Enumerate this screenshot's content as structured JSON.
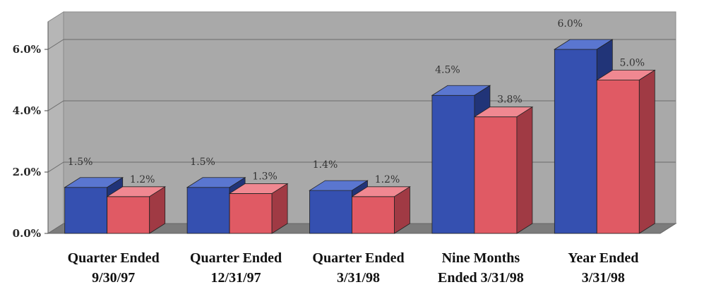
{
  "chart_data": {
    "type": "bar",
    "title": "",
    "xlabel": "",
    "ylabel": "",
    "ylim": [
      0,
      6.9
    ],
    "y_ticks": [
      "0.0%",
      "2.0%",
      "4.0%",
      "6.0%"
    ],
    "y_tick_values": [
      0,
      2,
      4,
      6
    ],
    "grid": true,
    "legend": "none",
    "categories": [
      [
        "Quarter Ended",
        "9/30/97"
      ],
      [
        "Quarter Ended",
        "12/31/97"
      ],
      [
        "Quarter Ended",
        "3/31/98"
      ],
      [
        "Nine Months",
        "Ended 3/31/98"
      ],
      [
        "Year  Ended",
        "3/31/98"
      ]
    ],
    "series": [
      {
        "values": [
          1.5,
          1.5,
          1.4,
          4.5,
          6.0
        ],
        "labels": [
          "1.5%",
          "1.5%",
          "1.4%",
          "4.5%",
          "6.0%"
        ]
      },
      {
        "values": [
          1.2,
          1.3,
          1.2,
          3.8,
          5.0
        ],
        "labels": [
          "1.2%",
          "1.3%",
          "1.2%",
          "3.8%",
          "5.0%"
        ]
      }
    ],
    "colors": {
      "series_front": [
        "#3550b0",
        "#e05a64"
      ],
      "series_top": [
        "#5a76d0",
        "#f08891"
      ],
      "series_side": [
        "#213478",
        "#a03a44"
      ],
      "wall": "#a9a9a9",
      "floor": "#7c7c7c",
      "grid": "#6c6c6c"
    }
  }
}
